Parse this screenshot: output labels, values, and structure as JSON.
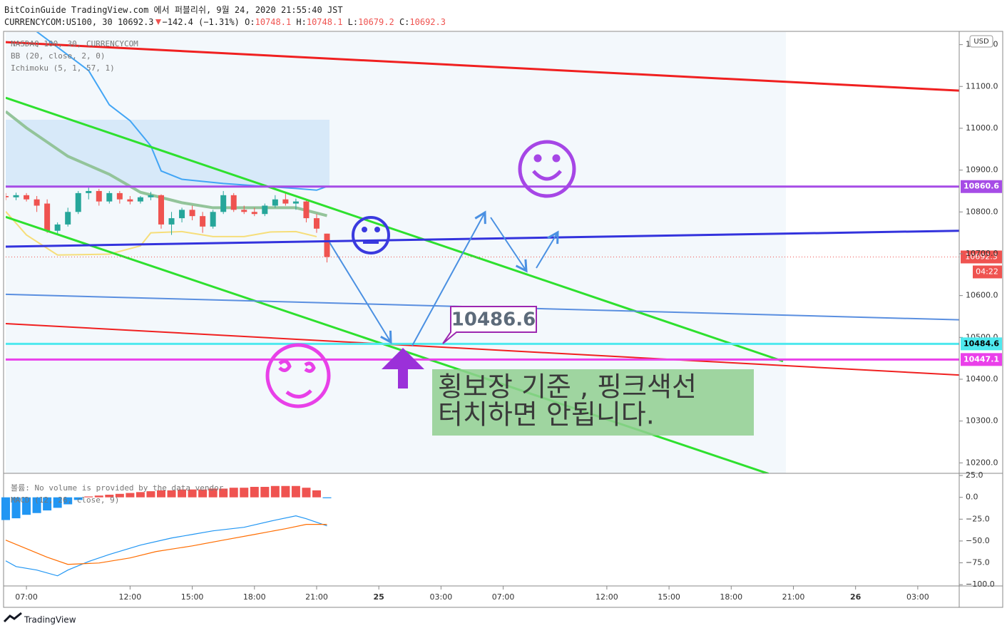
{
  "header": {
    "title": "BitCoinGuide TradingView.com 에서 퍼블리쉬, 9월 24, 2020 21:55:40 JST",
    "symbol": "CURRENCYCOM:US100, 30",
    "last": "10692.3",
    "change": "−142.4 (−1.31%)",
    "ohlc": [
      {
        "label": "O:",
        "value": "10748.1"
      },
      {
        "label": "H:",
        "value": "10748.1"
      },
      {
        "label": "L:",
        "value": "10679.2"
      },
      {
        "label": "C:",
        "value": "10692.3"
      }
    ]
  },
  "legend": [
    "NASDAQ 100, 30, CURRENCYCOM",
    "BB (20, close, 2, 0)",
    "Ichimoku (5, 1, 57, 1)"
  ],
  "chart_data": [
    {
      "type": "candlestick",
      "currency": "USD",
      "xlim": [
        -1,
        45
      ],
      "xticks": [
        {
          "value": 0,
          "label": "07:00"
        },
        {
          "value": 5,
          "label": "12:00"
        },
        {
          "value": 8,
          "label": "15:00"
        },
        {
          "value": 11,
          "label": "18:00"
        },
        {
          "value": 14,
          "label": "21:00"
        },
        {
          "value": 17,
          "label": "25"
        },
        {
          "value": 20,
          "label": "03:00"
        },
        {
          "value": 23,
          "label": "07:00"
        },
        {
          "value": 28,
          "label": "12:00"
        },
        {
          "value": 31,
          "label": "15:00"
        },
        {
          "value": 34,
          "label": "18:00"
        },
        {
          "value": 37,
          "label": "21:00"
        },
        {
          "value": 40,
          "label": "26"
        },
        {
          "value": 43,
          "label": "03:00"
        }
      ],
      "ylim": [
        10175,
        11230
      ],
      "yticks": [
        {
          "value": 10200,
          "label": "10200.0"
        },
        {
          "value": 10300,
          "label": "10300.0"
        },
        {
          "value": 10400,
          "label": "10400.0"
        },
        {
          "value": 10500,
          "label": "10500.0"
        },
        {
          "value": 10600,
          "label": "10600.0"
        },
        {
          "value": 10700,
          "label": "10700.0"
        },
        {
          "value": 10800,
          "label": "10800.0"
        },
        {
          "value": 10900,
          "label": "10900.0"
        },
        {
          "value": 11000,
          "label": "11000.0"
        },
        {
          "value": 11100,
          "label": "11100.0"
        },
        {
          "value": 11200,
          "label": "11200.0"
        }
      ],
      "up_color": "#26a69a",
      "down_color": "#ef5350",
      "x": [
        -1,
        -0.5,
        0,
        0.5,
        1,
        1.5,
        2,
        2.5,
        3,
        3.5,
        4,
        4.5,
        5,
        5.5,
        6,
        6.5,
        7,
        7.5,
        8,
        8.5,
        9,
        9.5,
        10,
        10.5,
        11,
        11.5,
        12,
        12.5,
        13,
        13.5,
        14,
        14.5
      ],
      "open": [
        10838,
        10835,
        10840,
        10830,
        10820,
        10755,
        10770,
        10800,
        10845,
        10850,
        10825,
        10845,
        10830,
        10825,
        10835,
        10840,
        10770,
        10785,
        10805,
        10790,
        10765,
        10800,
        10840,
        10805,
        10800,
        10795,
        10815,
        10830,
        10820,
        10825,
        10785,
        10748.1
      ],
      "high": [
        10845,
        10846,
        10845,
        10838,
        10830,
        10775,
        10810,
        10850,
        10858,
        10855,
        10850,
        10850,
        10838,
        10838,
        10848,
        10842,
        10800,
        10810,
        10815,
        10800,
        10805,
        10850,
        10845,
        10815,
        10810,
        10820,
        10840,
        10845,
        10832,
        10830,
        10795,
        10748.1
      ],
      "low": [
        10828,
        10828,
        10825,
        10800,
        10750,
        10745,
        10765,
        10795,
        10830,
        10815,
        10820,
        10820,
        10818,
        10820,
        10828,
        10760,
        10745,
        10775,
        10780,
        10750,
        10760,
        10795,
        10800,
        10795,
        10790,
        10790,
        10810,
        10815,
        10805,
        10775,
        10750,
        10679.2
      ],
      "close": [
        10835,
        10840,
        10830,
        10815,
        10755,
        10770,
        10800,
        10845,
        10850,
        10825,
        10845,
        10830,
        10825,
        10835,
        10840,
        10770,
        10785,
        10805,
        10790,
        10765,
        10800,
        10840,
        10805,
        10800,
        10795,
        10815,
        10830,
        10820,
        10825,
        10785,
        10760,
        10692.3
      ],
      "lines": [
        {
          "color": "#42a5f5",
          "width": 2,
          "x": [
            0.5,
            3,
            4,
            5,
            6,
            6.5,
            7.5,
            9.5,
            11.5,
            13,
            14,
            14.5
          ],
          "values": [
            11231,
            11138,
            11056,
            11018,
            10958,
            10898,
            10878,
            10868,
            10861,
            10856,
            10852,
            10861
          ]
        },
        {
          "color": "#93c49a",
          "width": 4,
          "x": [
            -1,
            0,
            2,
            4,
            5.5,
            7.5,
            9,
            11.5,
            13,
            14.5
          ],
          "values": [
            11040,
            11001,
            10933,
            10890,
            10847,
            10822,
            10810,
            10810,
            10810,
            10791
          ]
        },
        {
          "color": "#f6de7a",
          "width": 2,
          "x": [
            -1,
            0,
            1.5,
            4,
            5.5,
            6,
            7.5,
            9,
            10.5,
            11.75,
            13,
            14
          ],
          "values": [
            10801,
            10745,
            10697,
            10699,
            10719,
            10750,
            10753,
            10741,
            10741,
            10752,
            10753,
            10741
          ]
        }
      ],
      "trendlines": [
        {
          "color": "#f02020",
          "width": 3,
          "x": [
            -1,
            45
          ],
          "values": [
            11206,
            11090
          ]
        },
        {
          "color": "#2ee02e",
          "width": 3,
          "x": [
            -1,
            36.5
          ],
          "values": [
            11073,
            10443
          ]
        },
        {
          "color": "#2ee02e",
          "width": 3,
          "x": [
            -1,
            35.8
          ],
          "values": [
            10788,
            10174
          ]
        },
        {
          "color": "#3333dd",
          "width": 3,
          "x": [
            -1,
            45
          ],
          "values": [
            10717,
            10755
          ]
        },
        {
          "color": "#5a8fe0",
          "width": 2,
          "x": [
            -1,
            45
          ],
          "values": [
            10603,
            10542
          ]
        },
        {
          "color": "#f02020",
          "width": 2,
          "x": [
            -1,
            45
          ],
          "values": [
            10533,
            10410
          ]
        }
      ],
      "price_lines": [
        {
          "value": 10860.6,
          "color": "#a64ce6",
          "text_color": "#ffffff"
        },
        {
          "value": 10484.6,
          "color": "#4ee8ee",
          "text_color": "#000000"
        },
        {
          "value": 10447.1,
          "color": "#ea40ea",
          "text_color": "#ffffff"
        }
      ],
      "last_price": 10692.3,
      "last_color": "#ef5350",
      "countdown": "04:22"
    },
    {
      "type": "macd",
      "label": "MACD (12, 26, close, 9)",
      "volume_note": "볼륨: No volume is provided by the data vendor.",
      "ylim": [
        -101.5,
        27.5
      ],
      "yticks": [
        {
          "value": 25,
          "label": "25.0"
        },
        {
          "value": 0,
          "label": "0.0"
        },
        {
          "value": -25,
          "label": "−25.0"
        },
        {
          "value": -50,
          "label": "−50.0"
        },
        {
          "value": -75,
          "label": "−75.0"
        },
        {
          "value": -100,
          "label": "−100.0"
        }
      ],
      "positive_color": "#ef5350",
      "negative_color": "#2196f3",
      "x": [
        -1,
        -0.5,
        0,
        0.5,
        1,
        1.5,
        2,
        2.5,
        3,
        3.5,
        4,
        4.5,
        5,
        5.5,
        6,
        6.5,
        7,
        7.5,
        8,
        8.5,
        9,
        9.5,
        10,
        10.5,
        11,
        11.5,
        12,
        12.5,
        13,
        13.5,
        14,
        14.5
      ],
      "histogram": [
        -26,
        -24,
        -20,
        -18,
        -15,
        -12,
        -8,
        -3,
        1,
        2,
        3,
        4,
        5,
        6,
        7,
        8,
        8,
        9,
        9,
        9,
        10,
        10,
        11,
        11,
        12,
        12,
        13,
        13,
        13,
        11,
        8,
        -1
      ],
      "macd": {
        "color": "#2196f3",
        "x": [
          -1,
          -0.5,
          0.5,
          1.5,
          2,
          3,
          4,
          5.5,
          7,
          8,
          9,
          10.5,
          12,
          13,
          13.5,
          14.5
        ],
        "values": [
          -72.7,
          -79.3,
          -83.3,
          -89.9,
          -83.3,
          -73.5,
          -65.4,
          -54.7,
          -46.6,
          -42.5,
          -38.4,
          -34.3,
          -26.1,
          -21.2,
          -24.5,
          -32.7
        ]
      },
      "signal": {
        "color": "#ff6d00",
        "x": [
          -1,
          0,
          1,
          2,
          3.5,
          5,
          6.25,
          8,
          9.5,
          11,
          12.5,
          13.5,
          14.5
        ],
        "values": [
          -49,
          -58.8,
          -68.6,
          -76.8,
          -75.2,
          -69.4,
          -62.1,
          -55.6,
          -49,
          -42.5,
          -35.9,
          -31,
          -31
        ]
      }
    }
  ],
  "annotations": {
    "callout": 10486.6,
    "note": [
      "횡보장 기준 , 핑크색선",
      "터치하면 안됩니다."
    ]
  },
  "footer": "TradingView"
}
